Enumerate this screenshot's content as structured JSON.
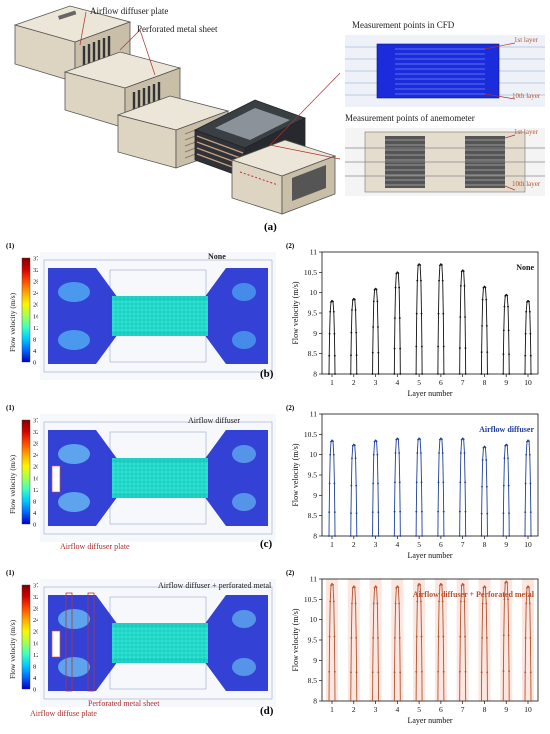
{
  "part_a": {
    "label": "(a)",
    "callouts": {
      "diffuser": "Airflow diffuser plate",
      "perforated": "Perforated metal sheet",
      "cfd_title": "Measurement points in CFD",
      "anem_title": "Measurement points of anemometer",
      "first_layer": "1st layer",
      "tenth_layer": "10th layer"
    }
  },
  "colorbar": {
    "ticks": [
      "37.35",
      "32",
      "28",
      "24",
      "20",
      "16",
      "12",
      "8",
      "4",
      "0"
    ],
    "label": "Flow velocity (m/s)"
  },
  "panels": [
    {
      "label": "(b)",
      "left_num": "(1)",
      "right_num": "(2)",
      "cfd_title": "None",
      "notes": [],
      "chart_data": {
        "type": "line",
        "legend": "None",
        "color": "#111111",
        "xlabel": "Layer number",
        "ylabel": "Flow velocity (m/s)",
        "ylim": [
          8,
          11
        ],
        "yticks": [
          "8",
          "8.5",
          "9",
          "9.5",
          "10",
          "10.5",
          "11"
        ],
        "categories": [
          "1",
          "2",
          "3",
          "4",
          "5",
          "6",
          "7",
          "8",
          "9",
          "10"
        ],
        "peaks": [
          9.8,
          9.85,
          10.1,
          10.5,
          10.7,
          10.7,
          10.55,
          10.15,
          9.95,
          9.8
        ]
      }
    },
    {
      "label": "(c)",
      "left_num": "(1)",
      "right_num": "(2)",
      "cfd_title": "Airflow diffuser",
      "notes": [
        "Airflow diffuser plate"
      ],
      "chart_data": {
        "type": "line",
        "legend": "Airflow diffuser",
        "color": "#1f3f9a",
        "xlabel": "Layer number",
        "ylabel": "Flow velocity (m/s)",
        "ylim": [
          8,
          11
        ],
        "yticks": [
          "8",
          "8.5",
          "9",
          "9.5",
          "10",
          "10.5",
          "11"
        ],
        "categories": [
          "1",
          "2",
          "3",
          "4",
          "5",
          "6",
          "7",
          "8",
          "9",
          "10"
        ],
        "peaks": [
          10.35,
          10.25,
          10.35,
          10.4,
          10.4,
          10.4,
          10.4,
          10.2,
          10.25,
          10.35
        ]
      }
    },
    {
      "label": "(d)",
      "left_num": "(1)",
      "right_num": "(2)",
      "cfd_title": "Airflow diffuser + perforated metal",
      "notes": [
        "Perforated metal sheet",
        "Airflow diffuse plate"
      ],
      "chart_data": {
        "type": "line",
        "legend": "Airflow diffuser + Perforated metal",
        "color": "#b5532f",
        "xlabel": "Layer number",
        "ylabel": "Flow velocity (m/s)",
        "ylim": [
          8,
          10.5
        ],
        "yticks": [
          "8",
          "8.5",
          "9",
          "9.5",
          "10",
          "10.5",
          "11"
        ],
        "categories": [
          "1",
          "2",
          "3",
          "4",
          "5",
          "6",
          "7",
          "8",
          "9",
          "10"
        ],
        "peaks": [
          10.4,
          10.35,
          10.35,
          10.35,
          10.4,
          10.4,
          10.4,
          10.35,
          10.45,
          10.35
        ]
      }
    }
  ]
}
